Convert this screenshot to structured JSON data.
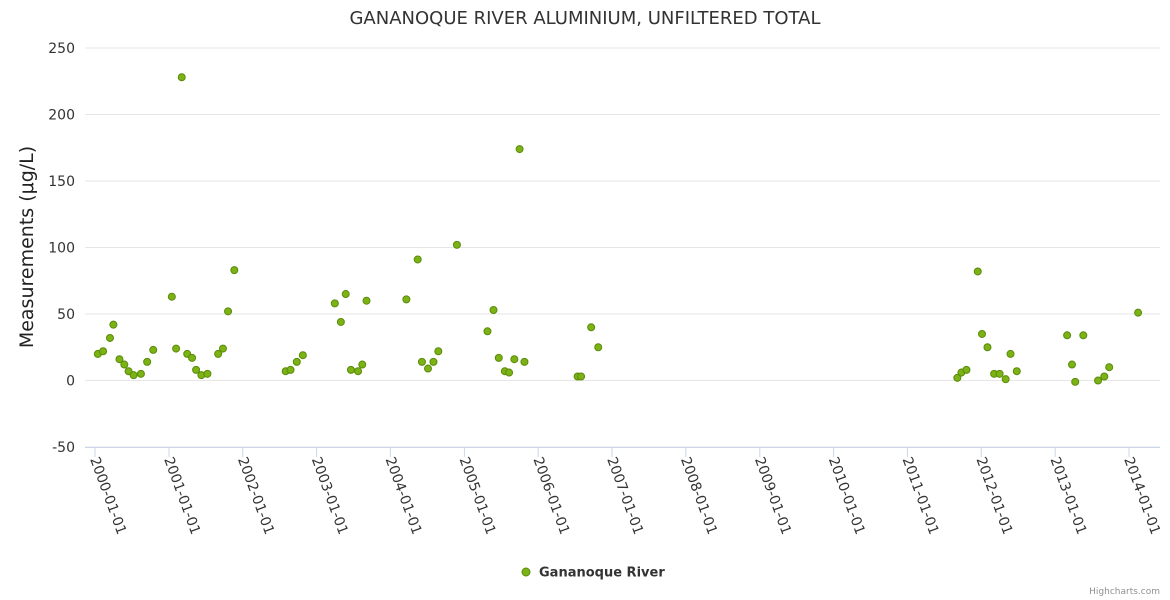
{
  "chart_data": {
    "type": "scatter",
    "title": "GANANOQUE RIVER ALUMINIUM, UNFILTERED TOTAL",
    "xlabel": "",
    "ylabel": "Measurements (μg/L)",
    "ylim": [
      -50,
      250
    ],
    "yticks": [
      250,
      200,
      150,
      100,
      50,
      0,
      -50
    ],
    "xlim": [
      "2000-01-01",
      "2014-03-01"
    ],
    "xticks": [
      "2000-01-01",
      "2001-01-01",
      "2002-01-01",
      "2003-01-01",
      "2004-01-01",
      "2005-01-01",
      "2006-01-01",
      "2007-01-01",
      "2008-01-01",
      "2009-01-01",
      "2010-01-01",
      "2011-01-01",
      "2012-01-01",
      "2013-01-01",
      "2014-01-01"
    ],
    "grid": true,
    "legend_position": "bottom-center",
    "color": "#7cb314",
    "series": [
      {
        "name": "Gananoque River",
        "points": [
          {
            "x": "2000-01-15",
            "y": 20
          },
          {
            "x": "2000-02-10",
            "y": 22
          },
          {
            "x": "2000-03-15",
            "y": 32
          },
          {
            "x": "2000-04-01",
            "y": 42
          },
          {
            "x": "2000-05-01",
            "y": 16
          },
          {
            "x": "2000-05-25",
            "y": 12
          },
          {
            "x": "2000-06-15",
            "y": 7
          },
          {
            "x": "2000-07-10",
            "y": 4
          },
          {
            "x": "2000-08-15",
            "y": 5
          },
          {
            "x": "2000-09-15",
            "y": 14
          },
          {
            "x": "2000-10-15",
            "y": 23
          },
          {
            "x": "2001-01-15",
            "y": 63
          },
          {
            "x": "2001-02-05",
            "y": 24
          },
          {
            "x": "2001-03-05",
            "y": 228
          },
          {
            "x": "2001-04-01",
            "y": 20
          },
          {
            "x": "2001-04-25",
            "y": 17
          },
          {
            "x": "2001-05-15",
            "y": 8
          },
          {
            "x": "2001-06-10",
            "y": 4
          },
          {
            "x": "2001-07-10",
            "y": 5
          },
          {
            "x": "2001-09-01",
            "y": 20
          },
          {
            "x": "2001-09-25",
            "y": 24
          },
          {
            "x": "2001-10-20",
            "y": 52
          },
          {
            "x": "2001-11-20",
            "y": 83
          },
          {
            "x": "2002-08-01",
            "y": 7
          },
          {
            "x": "2002-08-25",
            "y": 8
          },
          {
            "x": "2002-09-25",
            "y": 14
          },
          {
            "x": "2002-10-25",
            "y": 19
          },
          {
            "x": "2003-04-01",
            "y": 58
          },
          {
            "x": "2003-05-01",
            "y": 44
          },
          {
            "x": "2003-05-25",
            "y": 65
          },
          {
            "x": "2003-06-20",
            "y": 8
          },
          {
            "x": "2003-07-25",
            "y": 7
          },
          {
            "x": "2003-08-15",
            "y": 12
          },
          {
            "x": "2003-09-05",
            "y": 60
          },
          {
            "x": "2004-03-20",
            "y": 61
          },
          {
            "x": "2004-05-15",
            "y": 91
          },
          {
            "x": "2004-06-05",
            "y": 14
          },
          {
            "x": "2004-07-05",
            "y": 9
          },
          {
            "x": "2004-08-01",
            "y": 14
          },
          {
            "x": "2004-08-25",
            "y": 22
          },
          {
            "x": "2004-11-25",
            "y": 102
          },
          {
            "x": "2005-04-25",
            "y": 37
          },
          {
            "x": "2005-05-25",
            "y": 53
          },
          {
            "x": "2005-06-20",
            "y": 17
          },
          {
            "x": "2005-07-20",
            "y": 7
          },
          {
            "x": "2005-08-10",
            "y": 6
          },
          {
            "x": "2005-09-05",
            "y": 16
          },
          {
            "x": "2005-10-01",
            "y": 174
          },
          {
            "x": "2005-10-25",
            "y": 14
          },
          {
            "x": "2006-07-15",
            "y": 3
          },
          {
            "x": "2006-08-01",
            "y": 3
          },
          {
            "x": "2006-09-20",
            "y": 40
          },
          {
            "x": "2006-10-25",
            "y": 25
          },
          {
            "x": "2011-09-05",
            "y": 2
          },
          {
            "x": "2011-09-25",
            "y": 6
          },
          {
            "x": "2011-10-20",
            "y": 8
          },
          {
            "x": "2011-12-15",
            "y": 82
          },
          {
            "x": "2012-01-05",
            "y": 35
          },
          {
            "x": "2012-02-01",
            "y": 25
          },
          {
            "x": "2012-03-05",
            "y": 5
          },
          {
            "x": "2012-04-01",
            "y": 5
          },
          {
            "x": "2012-05-01",
            "y": 1
          },
          {
            "x": "2012-05-25",
            "y": 20
          },
          {
            "x": "2012-06-25",
            "y": 7
          },
          {
            "x": "2013-03-01",
            "y": 34
          },
          {
            "x": "2013-03-25",
            "y": 12
          },
          {
            "x": "2013-04-10",
            "y": -1
          },
          {
            "x": "2013-05-20",
            "y": 34
          },
          {
            "x": "2013-08-01",
            "y": 0
          },
          {
            "x": "2013-09-01",
            "y": 3
          },
          {
            "x": "2013-09-25",
            "y": 10
          },
          {
            "x": "2014-02-15",
            "y": 51
          }
        ]
      }
    ]
  },
  "credits": "Highcharts.com"
}
